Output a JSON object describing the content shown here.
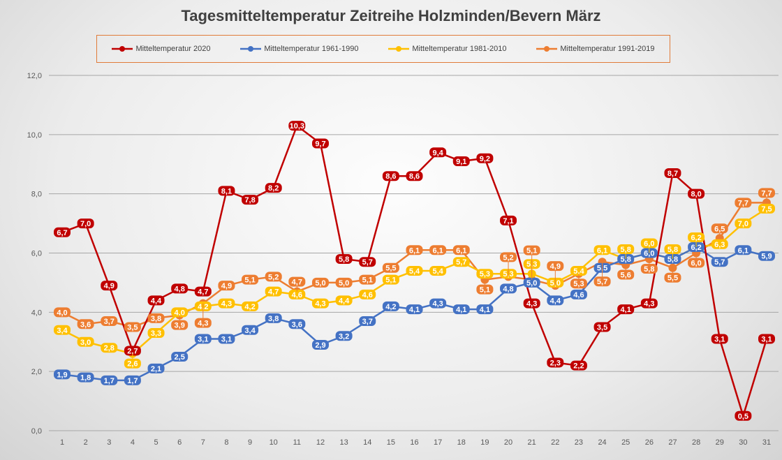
{
  "chart_data": {
    "type": "line",
    "title": "Tagesmitteltemperatur Zeitreihe Holzminden/Bevern März",
    "xlabel": "",
    "ylabel": "",
    "ylim": [
      0,
      12
    ],
    "yticks": [
      "0,0",
      "2,0",
      "4,0",
      "6,0",
      "8,0",
      "10,0",
      "12,0"
    ],
    "grid": true,
    "legend": "top",
    "x": [
      1,
      2,
      3,
      4,
      5,
      6,
      7,
      8,
      9,
      10,
      11,
      12,
      13,
      14,
      15,
      16,
      17,
      18,
      19,
      20,
      21,
      22,
      23,
      24,
      25,
      26,
      27,
      28,
      29,
      30,
      31
    ],
    "series": [
      {
        "name": "Mitteltemperatur 1991-2019",
        "color": "#ed7d31",
        "values": [
          4.0,
          3.6,
          3.7,
          3.5,
          3.8,
          3.9,
          4.3,
          4.9,
          5.1,
          5.2,
          4.7,
          5.0,
          5.0,
          5.1,
          5.5,
          6.1,
          6.1,
          6.1,
          5.1,
          5.2,
          5.1,
          4.9,
          5.3,
          5.7,
          5.6,
          5.8,
          5.5,
          6.0,
          6.5,
          7.7,
          7.7
        ]
      },
      {
        "name": "Mitteltemperatur 1981-2010",
        "color": "#ffc000",
        "values": [
          3.4,
          3.0,
          2.8,
          2.6,
          3.3,
          4.0,
          4.2,
          4.3,
          4.2,
          4.7,
          4.6,
          4.3,
          4.4,
          4.6,
          5.1,
          5.4,
          5.4,
          5.7,
          5.3,
          5.3,
          5.3,
          5.0,
          5.4,
          6.1,
          5.8,
          6.0,
          5.8,
          6.2,
          6.3,
          7.0,
          7.5
        ]
      },
      {
        "name": "Mitteltemperatur 1961-1990",
        "color": "#4472c4",
        "values": [
          1.9,
          1.8,
          1.7,
          1.7,
          2.1,
          2.5,
          3.1,
          3.1,
          3.4,
          3.8,
          3.6,
          2.9,
          3.2,
          3.7,
          4.2,
          4.1,
          4.3,
          4.1,
          4.1,
          4.8,
          5.0,
          4.4,
          4.6,
          5.5,
          5.8,
          6.0,
          5.8,
          6.2,
          5.7,
          6.1,
          5.9
        ]
      },
      {
        "name": "Mitteltemperatur 2020",
        "color": "#c00000",
        "values": [
          6.7,
          7.0,
          4.9,
          2.7,
          4.4,
          4.8,
          4.7,
          8.1,
          7.8,
          8.2,
          10.3,
          9.7,
          5.8,
          5.7,
          8.6,
          8.6,
          9.4,
          9.1,
          9.2,
          7.1,
          4.3,
          2.3,
          2.2,
          3.5,
          4.1,
          4.3,
          8.7,
          8.0,
          3.1,
          0.5,
          3.1
        ]
      }
    ]
  },
  "legend_order": [
    3,
    2,
    1,
    0
  ]
}
